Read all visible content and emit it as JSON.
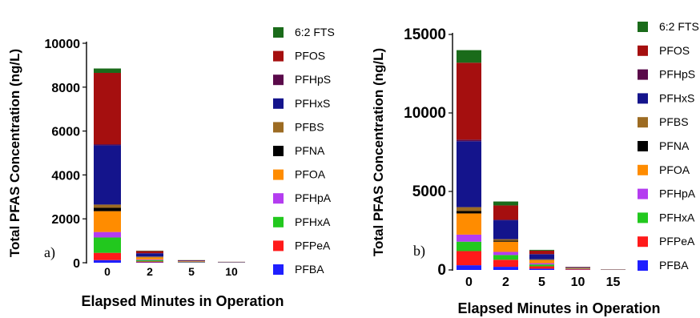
{
  "colors": {
    "PFBA": "#1f1fff",
    "PFPeA": "#ff1a1a",
    "PFHxA": "#22c81e",
    "PFHpA": "#b43cf0",
    "PFOA": "#ff8c00",
    "PFNA": "#000000",
    "PFBS": "#9c6b22",
    "PFHxS": "#14148c",
    "PFHpS": "#5a0a4a",
    "PFOS": "#a50f0f",
    "6:2 FTS": "#1a6b1a"
  },
  "chart_data": [
    {
      "type": "bar",
      "stacked": true,
      "panel_label": "a)",
      "ylabel": "Total  PFAS Concentration (ng/L)",
      "xlabel": "Elapsed Minutes in  Operation",
      "ylim": [
        0,
        10000
      ],
      "yticks": [
        "0",
        "2000",
        "4000",
        "6000",
        "8000",
        "10000"
      ],
      "categories": [
        "0",
        "2",
        "5",
        "10"
      ],
      "legend": [
        "6:2 FTS",
        "PFOS",
        "PFHpS",
        "PFHxS",
        "PFBS",
        "PFNA",
        "PFOA",
        "PFHpA",
        "PFHxA",
        "PFPeA",
        "PFBA"
      ],
      "series": [
        {
          "name": "PFBA",
          "values": [
            120,
            20,
            15,
            5
          ]
        },
        {
          "name": "PFPeA",
          "values": [
            330,
            40,
            10,
            5
          ]
        },
        {
          "name": "PFHxA",
          "values": [
            700,
            60,
            15,
            5
          ]
        },
        {
          "name": "PFHpA",
          "values": [
            250,
            30,
            5,
            2
          ]
        },
        {
          "name": "PFOA",
          "values": [
            950,
            100,
            20,
            5
          ]
        },
        {
          "name": "PFNA",
          "values": [
            150,
            10,
            3,
            1
          ]
        },
        {
          "name": "PFBS",
          "values": [
            150,
            20,
            5,
            2
          ]
        },
        {
          "name": "PFHxS",
          "values": [
            2700,
            150,
            20,
            10
          ]
        },
        {
          "name": "PFHpS",
          "values": [
            50,
            5,
            1,
            1
          ]
        },
        {
          "name": "PFOS",
          "values": [
            3250,
            100,
            20,
            5
          ]
        },
        {
          "name": "6:2 FTS",
          "values": [
            200,
            15,
            5,
            2
          ]
        }
      ]
    },
    {
      "type": "bar",
      "stacked": true,
      "panel_label": "b)",
      "ylabel": "Total  PFAS Concentration (ng/L)",
      "xlabel": "Elapsed  Minutes in  Operation",
      "ylim": [
        0,
        15000
      ],
      "yticks": [
        "0",
        "5000",
        "10000",
        "15000"
      ],
      "categories": [
        "0",
        "2",
        "5",
        "10",
        "15"
      ],
      "legend": [
        "6:2 FTS",
        "PFOS",
        "PFHpS",
        "PFHxS",
        "PFBS",
        "PFNA",
        "PFOA",
        "PFHpA",
        "PFHxA",
        "PFPeA",
        "PFBA"
      ],
      "series": [
        {
          "name": "PFBA",
          "values": [
            300,
            200,
            80,
            20,
            5
          ]
        },
        {
          "name": "PFPeA",
          "values": [
            900,
            450,
            150,
            30,
            5
          ]
        },
        {
          "name": "PFHxA",
          "values": [
            600,
            300,
            120,
            20,
            5
          ]
        },
        {
          "name": "PFHpA",
          "values": [
            450,
            200,
            80,
            10,
            2
          ]
        },
        {
          "name": "PFOA",
          "values": [
            1350,
            650,
            200,
            40,
            5
          ]
        },
        {
          "name": "PFNA",
          "values": [
            150,
            60,
            20,
            5,
            1
          ]
        },
        {
          "name": "PFBS",
          "values": [
            250,
            100,
            30,
            5,
            2
          ]
        },
        {
          "name": "PFHxS",
          "values": [
            4200,
            1200,
            320,
            40,
            10
          ]
        },
        {
          "name": "PFHpS",
          "values": [
            100,
            50,
            10,
            5,
            1
          ]
        },
        {
          "name": "PFOS",
          "values": [
            4900,
            900,
            220,
            20,
            5
          ]
        },
        {
          "name": "6:2 FTS",
          "values": [
            800,
            250,
            50,
            5,
            2
          ]
        }
      ]
    }
  ]
}
